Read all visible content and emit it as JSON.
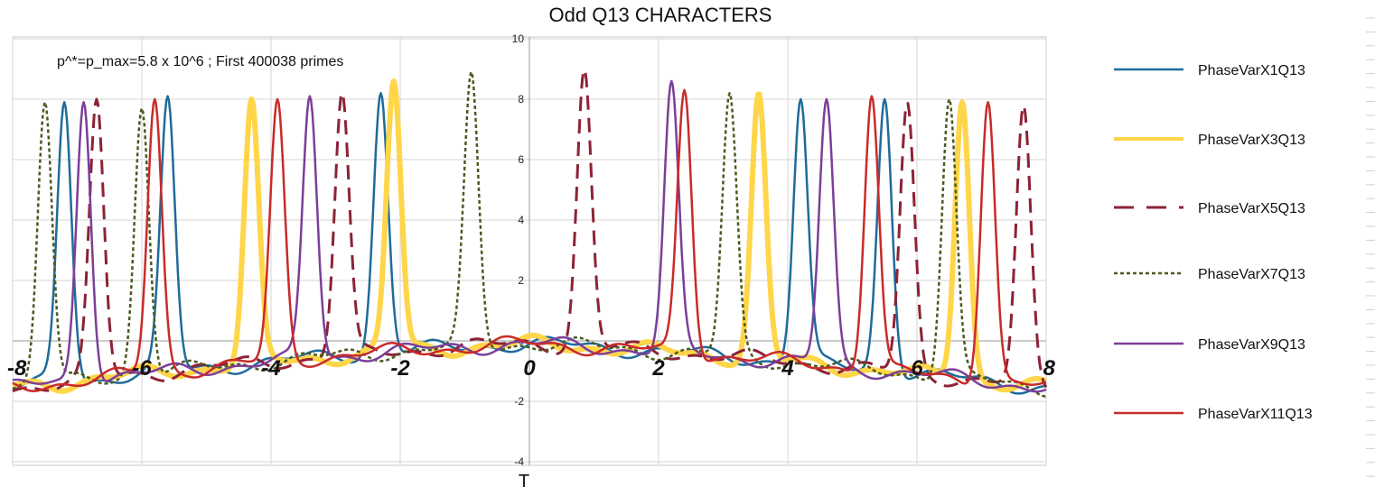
{
  "chart_data": {
    "type": "line",
    "title": "Odd Q13 CHARACTERS",
    "annotation": "p^*=p_max=5.8 x 10^6 ; First 400038 primes",
    "xlabel": "T",
    "ylabel": "",
    "xlim": [
      -8,
      8
    ],
    "ylim": [
      -4,
      10
    ],
    "x_ticks": [
      -8,
      -6,
      -4,
      -2,
      0,
      2,
      4,
      6,
      8
    ],
    "x_tick_labels": [
      "-8",
      "-6",
      "-4",
      "-2",
      "0",
      "2",
      "4",
      "6",
      "8"
    ],
    "y_ticks": [
      -4,
      -2,
      0,
      2,
      4,
      6,
      8,
      10
    ],
    "y_tick_labels": [
      "-4",
      "-2",
      "0",
      "2",
      "4",
      "6",
      "8",
      "10"
    ],
    "grid": true,
    "legend_position": "right",
    "series": [
      {
        "name": "PhaseVarX1Q13",
        "color": "#1f6b9a",
        "style": "solid",
        "width": 2.5,
        "peaks": [
          [
            -7.2,
            7.9
          ],
          [
            -5.6,
            8.1
          ],
          [
            -2.3,
            8.2
          ],
          [
            4.2,
            8.0
          ],
          [
            5.5,
            8.0
          ]
        ]
      },
      {
        "name": "PhaseVarX3Q13",
        "color": "#ffd54a",
        "style": "solid",
        "width": 6,
        "peaks": [
          [
            -4.3,
            8.0
          ],
          [
            -2.1,
            8.6
          ],
          [
            3.55,
            8.2
          ],
          [
            6.7,
            7.9
          ]
        ]
      },
      {
        "name": "PhaseVarX5Q13",
        "color": "#8c2336",
        "style": "dashed",
        "width": 3,
        "peaks": [
          [
            -6.7,
            8.0
          ],
          [
            -2.9,
            8.2
          ],
          [
            0.85,
            9.0
          ],
          [
            5.85,
            7.9
          ],
          [
            7.65,
            7.8
          ]
        ]
      },
      {
        "name": "PhaseVarX7Q13",
        "color": "#4a5a20",
        "style": "dotted",
        "width": 2.5,
        "peaks": [
          [
            -7.5,
            7.9
          ],
          [
            -6.0,
            7.7
          ],
          [
            -0.9,
            8.9
          ],
          [
            3.1,
            8.2
          ],
          [
            6.5,
            8.0
          ]
        ]
      },
      {
        "name": "PhaseVarX9Q13",
        "color": "#7b3f98",
        "style": "solid",
        "width": 2.5,
        "peaks": [
          [
            -6.9,
            7.9
          ],
          [
            -3.4,
            8.1
          ],
          [
            2.2,
            8.6
          ],
          [
            4.6,
            8.0
          ]
        ]
      },
      {
        "name": "PhaseVarX11Q13",
        "color": "#c92a2a",
        "style": "solid",
        "width": 2.5,
        "peaks": [
          [
            -5.8,
            8.0
          ],
          [
            -3.9,
            8.0
          ],
          [
            2.4,
            8.3
          ],
          [
            5.3,
            8.1
          ],
          [
            7.1,
            7.9
          ]
        ]
      }
    ]
  }
}
